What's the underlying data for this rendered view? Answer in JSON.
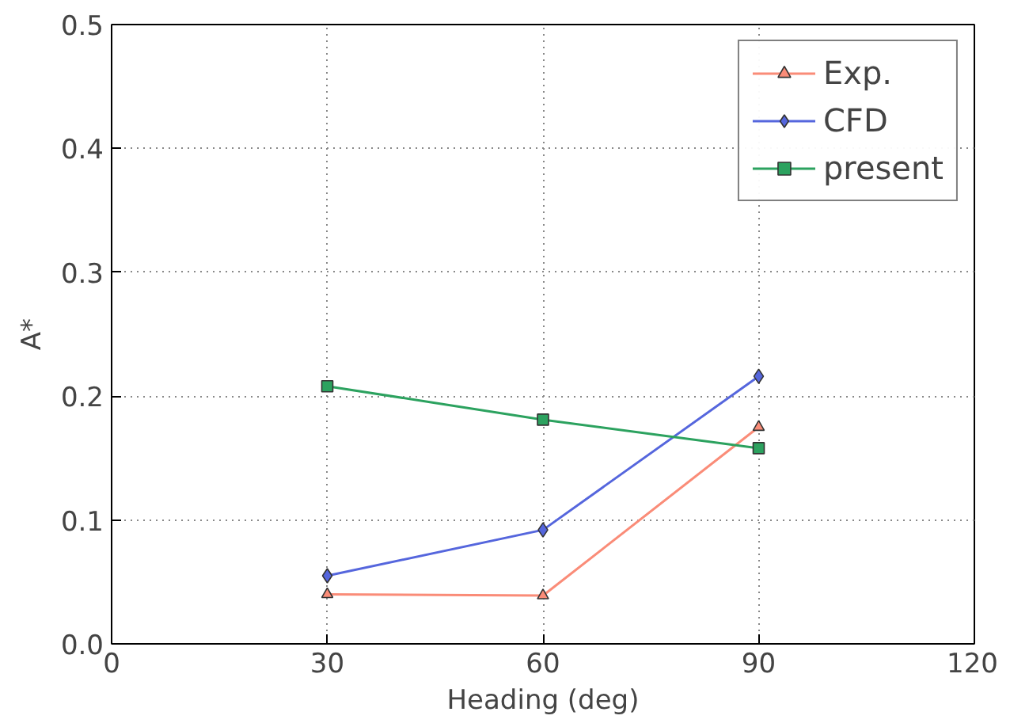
{
  "chart_data": {
    "type": "line",
    "xlabel": "Heading (deg)",
    "ylabel": "A*",
    "x": [
      30,
      60,
      90
    ],
    "series": [
      {
        "name": "Exp.",
        "color": "#fa8c78",
        "marker": "triangle",
        "values": [
          0.04,
          0.039,
          0.175
        ]
      },
      {
        "name": "CFD",
        "color": "#5566dd",
        "marker": "diamond",
        "values": [
          0.055,
          0.092,
          0.216
        ]
      },
      {
        "name": "present",
        "color": "#2ca25f",
        "marker": "square",
        "values": [
          0.208,
          0.181,
          0.158
        ]
      }
    ],
    "xlim": [
      0,
      120
    ],
    "xticks": [
      0,
      30,
      60,
      90,
      120
    ],
    "ylim": [
      0,
      0.5
    ],
    "yticks": [
      {
        "value": 0,
        "label": "0.0"
      },
      0.1,
      0.2,
      0.3,
      0.4,
      0.5
    ],
    "grid": true,
    "legend": "top right",
    "line_style": "solid"
  }
}
